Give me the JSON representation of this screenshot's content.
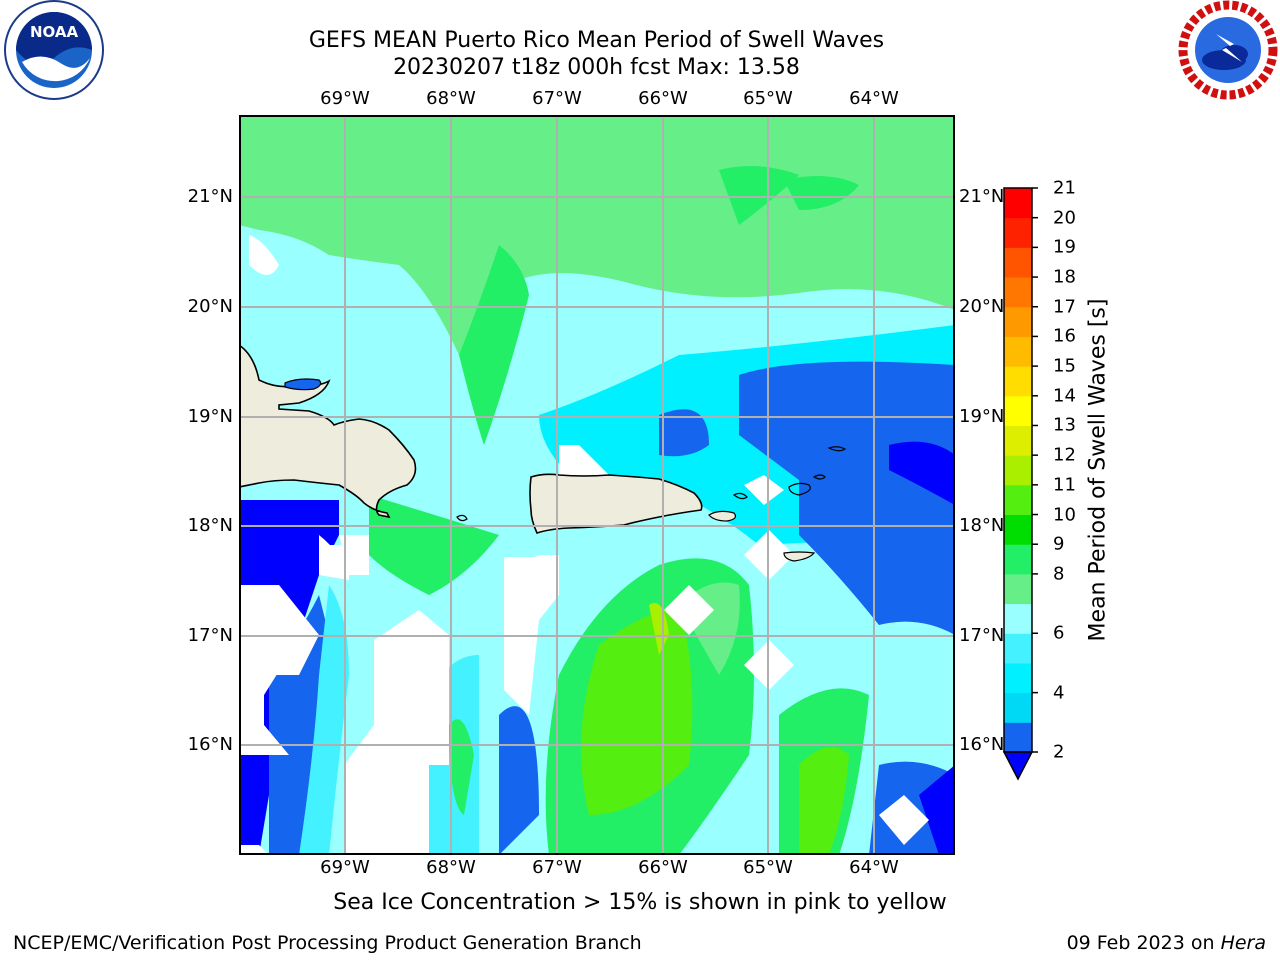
{
  "title_line1": "GEFS MEAN Puerto Rico Mean Period of Swell Waves",
  "title_line2": "20230207 t18z 000h fcst   Max: 13.58",
  "caption": "Sea Ice Concentration > 15% is shown in pink to yellow",
  "credit_left": "NCEP/EMC/Verification Post Processing Product Generation Branch",
  "credit_right_prefix": "09 Feb 2023 on ",
  "credit_right_host": "Hera",
  "logos": {
    "left": "noaa-logo",
    "right": "nws-logo"
  },
  "map": {
    "lon_labels": [
      "69°W",
      "68°W",
      "67°W",
      "66°W",
      "65°W",
      "64°W"
    ],
    "lat_labels": [
      "21°N",
      "20°N",
      "19°N",
      "18°N",
      "17°N",
      "16°N"
    ],
    "land_color": "#eeecdc",
    "grid_color": "#b0b0b0"
  },
  "colorbar": {
    "label": "Mean Period of Swell Waves [s]",
    "ticks": [
      "21",
      "20",
      "19",
      "18",
      "17",
      "16",
      "15",
      "14",
      "13",
      "12",
      "11",
      "10",
      "9",
      "8",
      "6",
      "4",
      "2"
    ],
    "colors": [
      "#1565ee",
      "#00d9f5",
      "#00f0ff",
      "#44f2ff",
      "#99ffff",
      "#66ee88",
      "#22ee66",
      "#00dd00",
      "#55ee11",
      "#aaee00",
      "#ddee00",
      "#ffff00",
      "#ffdd00",
      "#ffbb00",
      "#ff9900",
      "#ff7700",
      "#ff5500",
      "#ff2200",
      "#ff0000"
    ],
    "extend_color": "#0000ff"
  }
}
